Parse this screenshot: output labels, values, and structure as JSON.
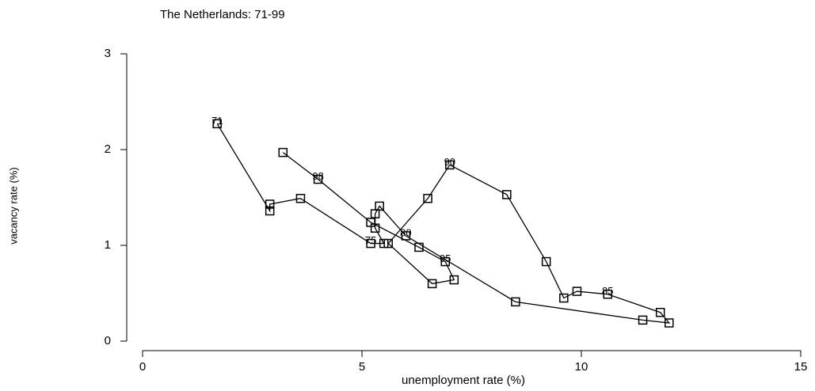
{
  "chart_data": {
    "type": "line",
    "title": "The Netherlands: 71-99",
    "xlabel": "unemployment rate (%)",
    "ylabel": "vacancy rate (%)",
    "x": [
      1.7,
      2.9,
      2.9,
      3.6,
      5.2,
      5.5,
      5.3,
      5.3,
      5.4,
      6.0,
      8.5,
      11.4,
      12.0,
      11.8,
      10.6,
      9.9,
      9.6,
      9.2,
      8.3,
      7.0,
      6.5,
      5.6,
      6.6,
      7.1,
      6.9,
      6.3,
      5.2,
      4.0,
      3.2
    ],
    "values": [
      2.27,
      1.36,
      1.43,
      1.49,
      1.02,
      1.02,
      1.18,
      1.33,
      1.41,
      1.1,
      0.41,
      0.22,
      0.19,
      0.3,
      0.49,
      0.52,
      0.45,
      0.83,
      1.53,
      1.84,
      1.49,
      1.02,
      0.6,
      0.64,
      0.83,
      0.98,
      1.24,
      1.69,
      1.97
    ],
    "point_labels": [
      "71",
      null,
      null,
      null,
      "75",
      null,
      null,
      null,
      null,
      "80",
      null,
      null,
      null,
      null,
      "85",
      null,
      null,
      null,
      null,
      "90",
      null,
      null,
      null,
      null,
      "95",
      null,
      null,
      "98",
      null
    ],
    "color": "#000000",
    "xlim": [
      0,
      15
    ],
    "xticks": [
      0,
      5,
      10,
      15
    ],
    "ylim": [
      0,
      3
    ],
    "yticks": [
      0,
      1,
      2,
      3
    ]
  }
}
